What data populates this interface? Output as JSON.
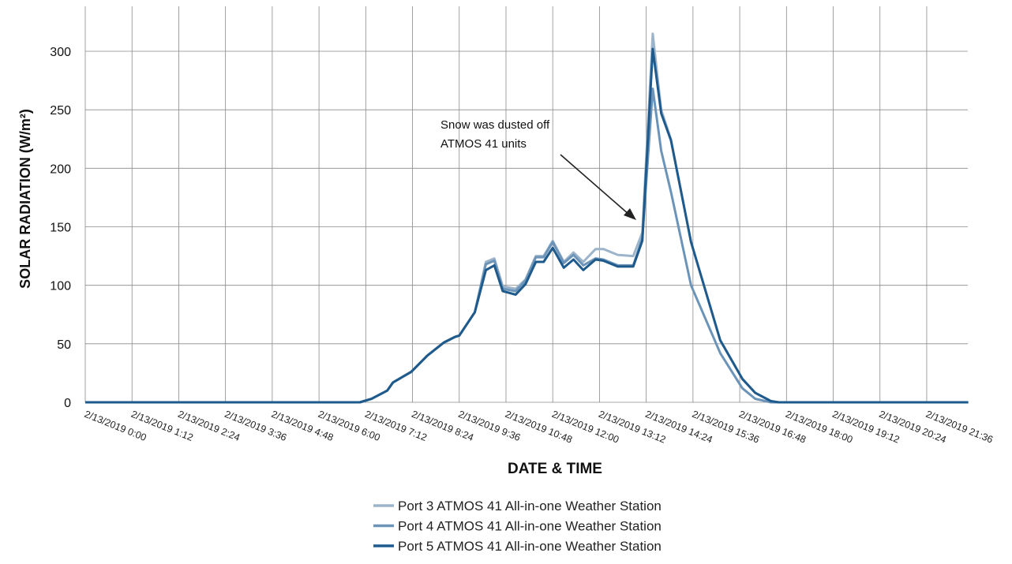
{
  "chart_data": {
    "type": "line",
    "title": "",
    "xlabel": "DATE & TIME",
    "ylabel": "SOLAR RADIATION (W/m²)",
    "date": "2/13/2019",
    "ylim": [
      0,
      300
    ],
    "yticks": [
      0,
      50,
      100,
      150,
      200,
      250,
      300
    ],
    "xticks": [
      "2/13/2019 0:00",
      "2/13/2019 1:12",
      "2/13/2019 2:24",
      "2/13/2019 3:36",
      "2/13/2019 4:48",
      "2/13/2019 6:00",
      "2/13/2019 7:12",
      "2/13/2019 8:24",
      "2/13/2019 9:36",
      "2/13/2019 10:48",
      "2/13/2019 12:00",
      "2/13/2019 13:12",
      "2/13/2019 14:24",
      "2/13/2019 15:36",
      "2/13/2019 16:48",
      "2/13/2019 18:00",
      "2/13/2019 19:12",
      "2/13/2019 20:24",
      "2/13/2019 21:36"
    ],
    "grid": true,
    "legend_position": "bottom",
    "x": [
      "0:00",
      "7:03",
      "7:21",
      "7:45",
      "7:54",
      "8:22",
      "8:47",
      "9:12",
      "9:30",
      "9:36",
      "10:00",
      "10:17",
      "10:30",
      "10:43",
      "11:03",
      "11:18",
      "11:34",
      "11:46",
      "12:00",
      "12:17",
      "12:32",
      "12:47",
      "13:06",
      "13:18",
      "13:40",
      "14:04",
      "14:18",
      "14:34",
      "14:47",
      "15:02",
      "15:33",
      "16:18",
      "16:52",
      "17:12",
      "17:36",
      "17:48",
      "22:40"
    ],
    "series": [
      {
        "name": "Port 3 ATMOS 41 All-in-one Weather Station",
        "color": "#9db5cb",
        "values": [
          0,
          0,
          3,
          10,
          17,
          26,
          40,
          51,
          56,
          57,
          77,
          120,
          123,
          99,
          97,
          105,
          125,
          125,
          138,
          120,
          128,
          120,
          131,
          131,
          126,
          125,
          145,
          315,
          250,
          225,
          137,
          53,
          20,
          8,
          1,
          0,
          0
        ]
      },
      {
        "name": "Port 4 ATMOS 41 All-in-one Weather Station",
        "color": "#6b94b8",
        "values": [
          0,
          0,
          3,
          10,
          17,
          26,
          40,
          51,
          56,
          57,
          77,
          118,
          121,
          97,
          95,
          104,
          124,
          124,
          137,
          119,
          126,
          117,
          123,
          122,
          117,
          117,
          140,
          268,
          215,
          180,
          100,
          42,
          12,
          3,
          0,
          0,
          0
        ]
      },
      {
        "name": "Port 5 ATMOS 41 All-in-one Weather Station",
        "color": "#1f5a8d",
        "values": [
          0,
          0,
          3,
          10,
          17,
          26,
          40,
          51,
          56,
          57,
          77,
          113,
          117,
          95,
          92,
          101,
          120,
          120,
          132,
          115,
          122,
          113,
          122,
          121,
          116,
          116,
          138,
          302,
          247,
          224,
          137,
          53,
          20,
          8,
          1,
          0,
          0
        ]
      }
    ],
    "annotations": [
      {
        "lines": [
          "Snow was dusted off",
          "ATMOS 41 units"
        ],
        "points_to": {
          "x": "14:10",
          "y": 155
        }
      }
    ]
  }
}
